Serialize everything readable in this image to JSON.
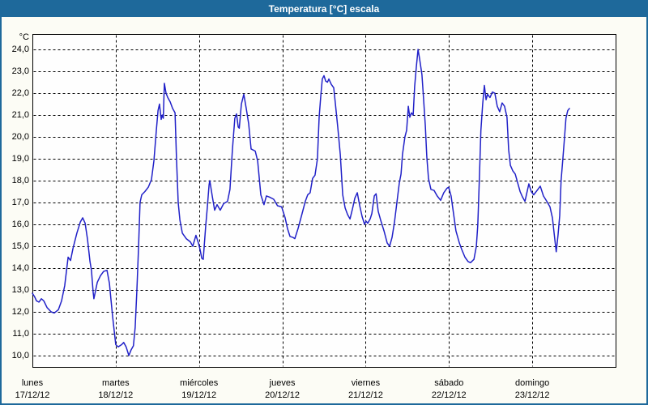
{
  "window": {
    "title": "Temperatura [°C] escala"
  },
  "colors": {
    "titlebar": "#1e699b",
    "title_text": "#ffffff",
    "window_border": "#1e699b",
    "background": "#fcfcf5",
    "plot_background": "#fefefe",
    "plot_border": "#000000",
    "grid": "#000000",
    "line": "#2121c8",
    "label_text": "#000000"
  },
  "chart_data": {
    "type": "line",
    "title": "Temperatura [°C] escala",
    "ylabel": "°C",
    "xlabel": "",
    "ylim": [
      10.0,
      24.0
    ],
    "x_range_days": 7,
    "grid": "dashed",
    "legend_position": "none",
    "y_ticks": {
      "values": [
        24.0,
        23.0,
        22.0,
        21.0,
        20.0,
        19.0,
        18.0,
        17.0,
        16.0,
        15.0,
        14.0,
        13.0,
        12.0,
        11.0,
        10.0
      ],
      "labels": [
        "24,0",
        "23,0",
        "22,0",
        "21,0",
        "20,0",
        "19,0",
        "18,0",
        "17,0",
        "16,0",
        "15,0",
        "14,0",
        "13,0",
        "12,0",
        "11,0",
        "10,0"
      ]
    },
    "x_days": [
      {
        "name": "lunes",
        "date": "17/12/12"
      },
      {
        "name": "martes",
        "date": "18/12/12"
      },
      {
        "name": "miércoles",
        "date": "19/12/12"
      },
      {
        "name": "jueves",
        "date": "20/12/12"
      },
      {
        "name": "viernes",
        "date": "21/12/12"
      },
      {
        "name": "sábado",
        "date": "22/12/12"
      },
      {
        "name": "domingo",
        "date": "23/12/12"
      }
    ],
    "series": [
      {
        "name": "Temperatura",
        "units": "°C",
        "x_units": "hours_from_monday_00h",
        "points": [
          [
            0.0,
            12.85
          ],
          [
            0.6,
            12.7
          ],
          [
            1.2,
            12.5
          ],
          [
            1.9,
            12.45
          ],
          [
            2.6,
            12.6
          ],
          [
            3.3,
            12.5
          ],
          [
            4.2,
            12.2
          ],
          [
            5.4,
            12.0
          ],
          [
            6.3,
            11.95
          ],
          [
            7.5,
            12.1
          ],
          [
            8.4,
            12.5
          ],
          [
            9.3,
            13.2
          ],
          [
            10.3,
            14.5
          ],
          [
            11.0,
            14.35
          ],
          [
            11.7,
            14.9
          ],
          [
            12.8,
            15.6
          ],
          [
            13.8,
            16.1
          ],
          [
            14.5,
            16.3
          ],
          [
            15.2,
            16.05
          ],
          [
            15.9,
            15.3
          ],
          [
            16.6,
            14.3
          ],
          [
            17.0,
            13.9
          ],
          [
            17.5,
            12.9
          ],
          [
            17.7,
            12.6
          ],
          [
            18.7,
            13.35
          ],
          [
            19.6,
            13.65
          ],
          [
            20.5,
            13.85
          ],
          [
            21.5,
            13.9
          ],
          [
            22.2,
            13.3
          ],
          [
            22.6,
            12.6
          ],
          [
            23.1,
            11.8
          ],
          [
            23.6,
            11.1
          ],
          [
            24.0,
            10.5
          ],
          [
            24.7,
            10.4
          ],
          [
            25.7,
            10.5
          ],
          [
            26.3,
            10.6
          ],
          [
            27.0,
            10.4
          ],
          [
            27.8,
            10.0
          ],
          [
            28.4,
            10.25
          ],
          [
            29.1,
            10.45
          ],
          [
            29.6,
            11.3
          ],
          [
            30.1,
            13.0
          ],
          [
            30.6,
            15.0
          ],
          [
            31.0,
            17.0
          ],
          [
            31.5,
            17.35
          ],
          [
            32.4,
            17.5
          ],
          [
            33.4,
            17.7
          ],
          [
            34.3,
            18.05
          ],
          [
            35.0,
            18.9
          ],
          [
            35.7,
            20.3
          ],
          [
            36.2,
            21.2
          ],
          [
            36.6,
            21.5
          ],
          [
            37.1,
            20.8
          ],
          [
            37.4,
            21.0
          ],
          [
            37.7,
            20.85
          ],
          [
            38.0,
            22.45
          ],
          [
            38.5,
            22.0
          ],
          [
            39.0,
            21.8
          ],
          [
            39.7,
            21.6
          ],
          [
            40.4,
            21.3
          ],
          [
            41.1,
            21.1
          ],
          [
            41.5,
            19.0
          ],
          [
            42.0,
            17.0
          ],
          [
            42.5,
            16.2
          ],
          [
            43.2,
            15.6
          ],
          [
            44.3,
            15.35
          ],
          [
            45.5,
            15.2
          ],
          [
            46.2,
            15.0
          ],
          [
            47.1,
            15.5
          ],
          [
            47.8,
            15.15
          ],
          [
            48.3,
            14.85
          ],
          [
            48.8,
            14.45
          ],
          [
            49.2,
            14.4
          ],
          [
            49.9,
            15.9
          ],
          [
            50.4,
            16.8
          ],
          [
            50.9,
            17.8
          ],
          [
            51.1,
            18.0
          ],
          [
            51.8,
            17.3
          ],
          [
            52.5,
            16.65
          ],
          [
            53.2,
            16.9
          ],
          [
            54.1,
            16.65
          ],
          [
            55.1,
            16.95
          ],
          [
            56.2,
            17.05
          ],
          [
            56.9,
            17.6
          ],
          [
            57.6,
            19.4
          ],
          [
            58.3,
            20.85
          ],
          [
            58.8,
            21.05
          ],
          [
            59.3,
            20.45
          ],
          [
            59.6,
            20.4
          ],
          [
            60.2,
            21.5
          ],
          [
            60.9,
            21.95
          ],
          [
            61.6,
            21.3
          ],
          [
            62.3,
            20.6
          ],
          [
            63.0,
            19.45
          ],
          [
            64.2,
            19.35
          ],
          [
            64.9,
            18.9
          ],
          [
            65.8,
            17.35
          ],
          [
            66.7,
            16.9
          ],
          [
            67.4,
            17.3
          ],
          [
            68.3,
            17.25
          ],
          [
            69.5,
            17.15
          ],
          [
            70.6,
            16.85
          ],
          [
            71.8,
            16.8
          ],
          [
            72.8,
            16.3
          ],
          [
            73.5,
            15.8
          ],
          [
            74.2,
            15.45
          ],
          [
            75.1,
            15.4
          ],
          [
            75.6,
            15.35
          ],
          [
            76.5,
            15.8
          ],
          [
            77.7,
            16.5
          ],
          [
            78.6,
            17.05
          ],
          [
            79.3,
            17.35
          ],
          [
            80.0,
            17.45
          ],
          [
            80.7,
            18.1
          ],
          [
            81.4,
            18.25
          ],
          [
            82.1,
            19.0
          ],
          [
            82.6,
            20.9
          ],
          [
            83.1,
            21.9
          ],
          [
            83.5,
            22.65
          ],
          [
            84.0,
            22.8
          ],
          [
            84.5,
            22.55
          ],
          [
            85.0,
            22.5
          ],
          [
            85.4,
            22.65
          ],
          [
            86.1,
            22.4
          ],
          [
            86.8,
            22.25
          ],
          [
            87.3,
            21.5
          ],
          [
            88.0,
            20.4
          ],
          [
            88.7,
            19.2
          ],
          [
            89.4,
            17.35
          ],
          [
            90.1,
            16.75
          ],
          [
            90.8,
            16.45
          ],
          [
            91.5,
            16.25
          ],
          [
            92.2,
            16.7
          ],
          [
            92.9,
            17.2
          ],
          [
            93.6,
            17.45
          ],
          [
            94.3,
            16.85
          ],
          [
            95.0,
            16.35
          ],
          [
            95.7,
            16.0
          ],
          [
            96.1,
            16.15
          ],
          [
            96.6,
            16.05
          ],
          [
            97.3,
            16.25
          ],
          [
            97.8,
            16.5
          ],
          [
            98.5,
            17.3
          ],
          [
            99.0,
            17.4
          ],
          [
            99.6,
            16.6
          ],
          [
            100.3,
            16.2
          ],
          [
            101.3,
            15.7
          ],
          [
            102.2,
            15.15
          ],
          [
            102.9,
            15.0
          ],
          [
            103.6,
            15.4
          ],
          [
            104.3,
            16.1
          ],
          [
            105.0,
            17.0
          ],
          [
            105.7,
            17.9
          ],
          [
            106.2,
            18.3
          ],
          [
            106.6,
            19.2
          ],
          [
            107.3,
            20.0
          ],
          [
            107.8,
            20.3
          ],
          [
            108.3,
            21.4
          ],
          [
            108.7,
            20.9
          ],
          [
            109.2,
            21.1
          ],
          [
            109.7,
            21.0
          ],
          [
            110.1,
            22.3
          ],
          [
            110.6,
            23.2
          ],
          [
            111.1,
            24.0
          ],
          [
            111.5,
            23.6
          ],
          [
            112.2,
            22.85
          ],
          [
            112.7,
            21.7
          ],
          [
            113.2,
            20.5
          ],
          [
            113.6,
            19.1
          ],
          [
            114.1,
            18.1
          ],
          [
            114.8,
            17.6
          ],
          [
            115.7,
            17.55
          ],
          [
            116.6,
            17.3
          ],
          [
            117.6,
            17.1
          ],
          [
            118.5,
            17.45
          ],
          [
            119.4,
            17.65
          ],
          [
            119.9,
            17.7
          ],
          [
            120.6,
            17.3
          ],
          [
            121.3,
            16.5
          ],
          [
            122.0,
            15.7
          ],
          [
            123.0,
            15.15
          ],
          [
            123.7,
            14.85
          ],
          [
            124.6,
            14.5
          ],
          [
            125.5,
            14.3
          ],
          [
            126.2,
            14.25
          ],
          [
            127.2,
            14.4
          ],
          [
            127.9,
            15.0
          ],
          [
            128.3,
            16.0
          ],
          [
            128.8,
            18.3
          ],
          [
            129.2,
            20.3
          ],
          [
            129.7,
            21.5
          ],
          [
            130.2,
            22.35
          ],
          [
            130.7,
            21.7
          ],
          [
            131.1,
            21.95
          ],
          [
            131.8,
            21.8
          ],
          [
            132.5,
            22.05
          ],
          [
            133.2,
            22.0
          ],
          [
            133.9,
            21.4
          ],
          [
            134.6,
            21.15
          ],
          [
            135.3,
            21.55
          ],
          [
            136.0,
            21.4
          ],
          [
            136.7,
            20.9
          ],
          [
            137.2,
            19.4
          ],
          [
            137.7,
            18.7
          ],
          [
            138.4,
            18.45
          ],
          [
            139.1,
            18.3
          ],
          [
            139.8,
            17.9
          ],
          [
            140.5,
            17.5
          ],
          [
            141.2,
            17.25
          ],
          [
            141.9,
            17.05
          ],
          [
            142.6,
            17.55
          ],
          [
            143.0,
            17.85
          ],
          [
            143.7,
            17.5
          ],
          [
            144.4,
            17.35
          ],
          [
            145.4,
            17.55
          ],
          [
            146.3,
            17.75
          ],
          [
            147.2,
            17.3
          ],
          [
            148.2,
            17.05
          ],
          [
            149.1,
            16.8
          ],
          [
            149.8,
            16.3
          ],
          [
            150.5,
            15.3
          ],
          [
            150.9,
            14.75
          ],
          [
            151.4,
            15.5
          ],
          [
            151.9,
            16.4
          ],
          [
            152.3,
            18.0
          ],
          [
            152.8,
            19.0
          ],
          [
            153.3,
            20.0
          ],
          [
            153.7,
            20.85
          ],
          [
            154.2,
            21.2
          ],
          [
            154.7,
            21.3
          ]
        ]
      }
    ]
  }
}
